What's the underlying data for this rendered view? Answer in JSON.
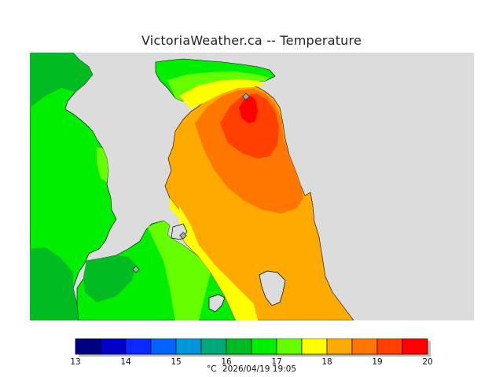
{
  "title": "VictoriaWeather.ca -- Temperature",
  "colorbar": {
    "unit": "°C",
    "timestamp": "2026/04/19 19:05",
    "ticks": [
      "13",
      "14",
      "15",
      "16",
      "17",
      "18",
      "19",
      "20"
    ],
    "colors": [
      "#000080",
      "#0000c8",
      "#0a28ff",
      "#0064ff",
      "#0096dc",
      "#00aa78",
      "#00bb22",
      "#00ee00",
      "#66ff00",
      "#ffff00",
      "#ffaa00",
      "#ff7700",
      "#ff4000",
      "#ff0000"
    ]
  },
  "map": {
    "land_color": "#dcdcdc",
    "coast_color": "#000000",
    "temperature_zones": [
      {
        "band": "16-16.5",
        "color": "#00bb22"
      },
      {
        "band": "16.5-17",
        "color": "#00ee00"
      },
      {
        "band": "17-17.5",
        "color": "#66ff00"
      },
      {
        "band": "17.5-18",
        "color": "#ffff00"
      },
      {
        "band": "18-18.5",
        "color": "#ffaa00"
      },
      {
        "band": "18.5-19",
        "color": "#ff7700"
      },
      {
        "band": "19-19.5",
        "color": "#ff4000"
      },
      {
        "band": "19.5-20",
        "color": "#ff0000"
      }
    ],
    "stations": [
      "station-a",
      "station-b",
      "station-c"
    ]
  }
}
